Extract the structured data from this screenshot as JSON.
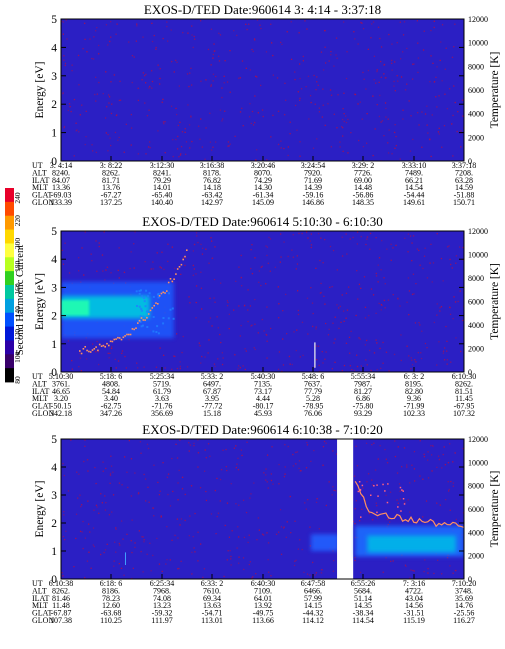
{
  "colorbar": {
    "label": "Second Harmonic Current",
    "ticks": [
      "240",
      "220",
      "200",
      "180",
      "160",
      "140",
      "120",
      "100",
      "80"
    ],
    "colors": [
      "#e8002a",
      "#ff4a00",
      "#ff9a00",
      "#ffd800",
      "#ffff40",
      "#b8ff20",
      "#30d020",
      "#00c8a0",
      "#00a0e0",
      "#0050ff",
      "#0018d8",
      "#2c00a8",
      "#38006a",
      "#000000"
    ]
  },
  "colors": {
    "background": "#2b1fc4",
    "noise_dot": "#b40f46",
    "trace": "#f0c8a0",
    "warm_line": "#ff9060",
    "gap": "#ffffff"
  },
  "chart_data": [
    {
      "type": "heatmap",
      "title": "EXOS-D/TED   Date:960614   3: 4:14 - 3:37:18",
      "ylabel": "Energy [eV]",
      "y2label": "Temperature [K]",
      "ylim": [
        0,
        5
      ],
      "y2lim": [
        0,
        12000
      ],
      "yticks": [
        "0",
        "1",
        "2",
        "3",
        "4",
        "5"
      ],
      "y2ticks": [
        "0",
        "2000",
        "4000",
        "6000",
        "8000",
        "10000",
        "12000"
      ],
      "table": {
        "row_labels": [
          "UT",
          "ALT",
          "ILAT",
          "MLT",
          "GLAT",
          "GLON"
        ],
        "columns": [
          [
            "3: 4:14",
            "8240.",
            "84.07",
            "13.36",
            "-69.03",
            "133.39"
          ],
          [
            "3: 8:22",
            "8262.",
            "81.71",
            "13.76",
            "-67.27",
            "137.25"
          ],
          [
            "3:12:30",
            "8241.",
            "79.29",
            "14.01",
            "-65.40",
            "140.40"
          ],
          [
            "3:16:38",
            "8178.",
            "76.82",
            "14.18",
            "-63.42",
            "142.97"
          ],
          [
            "3:20:46",
            "8070.",
            "74.29",
            "14.30",
            "-61.34",
            "145.09"
          ],
          [
            "3:24:54",
            "7920.",
            "71.69",
            "14.39",
            "-59.16",
            "146.86"
          ],
          [
            "3:29: 2",
            "7726.",
            "69.00",
            "14.48",
            "-56.86",
            "148.35"
          ],
          [
            "3:33:10",
            "7489.",
            "66.21",
            "14.54",
            "-54.44",
            "149.61"
          ],
          [
            "3:37:18",
            "7208.",
            "63.28",
            "14.59",
            "-51.88",
            "150.71"
          ]
        ]
      }
    },
    {
      "type": "heatmap",
      "title": "EXOS-D/TED   Date:960614   5:10:30 - 6:10:30",
      "ylabel": "Energy [eV]",
      "y2label": "Temperature [K]",
      "ylim": [
        0,
        5
      ],
      "y2lim": [
        0,
        12000
      ],
      "yticks": [
        "0",
        "1",
        "2",
        "3",
        "4",
        "5"
      ],
      "y2ticks": [
        "0",
        "2000",
        "4000",
        "6000",
        "8000",
        "10000",
        "12000"
      ],
      "table": {
        "row_labels": [
          "UT",
          "ALT",
          "ILAT",
          "MLT",
          "GLAT",
          "GLON"
        ],
        "columns": [
          [
            "5:10:30",
            "3761.",
            "46.65",
            "3.20",
            "-50.15",
            "342.18"
          ],
          [
            "5:18: 6",
            "4808.",
            "54.84",
            "3.40",
            "-62.75",
            "347.26"
          ],
          [
            "5:25:34",
            "5719.",
            "61.79",
            "3.63",
            "-71.76",
            "356.69"
          ],
          [
            "5:33: 2",
            "6497.",
            "67.87",
            "3.95",
            "-77.72",
            "15.18"
          ],
          [
            "5:40:30",
            "7135.",
            "73.17",
            "4.44",
            "-80.17",
            "45.93"
          ],
          [
            "5:48: 6",
            "7637.",
            "77.79",
            "5.28",
            "-78.95",
            "76.06"
          ],
          [
            "5:55:34",
            "7987.",
            "81.27",
            "6.86",
            "-75.80",
            "93.29"
          ],
          [
            "6: 3: 2",
            "8195.",
            "82.80",
            "9.36",
            "-71.99",
            "102.33"
          ],
          [
            "6:10:30",
            "8262.",
            "81.51",
            "11.45",
            "-67.95",
            "107.32"
          ]
        ]
      }
    },
    {
      "type": "heatmap",
      "title": "EXOS-D/TED   Date:960614   6:10:38 - 7:10:20",
      "ylabel": "Energy [eV]",
      "y2label": "Temperature [K]",
      "ylim": [
        0,
        5
      ],
      "y2lim": [
        0,
        12000
      ],
      "yticks": [
        "0",
        "1",
        "2",
        "3",
        "4",
        "5"
      ],
      "y2ticks": [
        "0",
        "2000",
        "4000",
        "6000",
        "8000",
        "10000",
        "12000"
      ],
      "table": {
        "row_labels": [
          "UT",
          "ALT",
          "ILAT",
          "MLT",
          "GLAT",
          "GLON"
        ],
        "columns": [
          [
            "6:10:38",
            "8262.",
            "81.46",
            "11.48",
            "-67.87",
            "107.38"
          ],
          [
            "6:18: 6",
            "8186.",
            "78.23",
            "12.60",
            "-63.68",
            "110.25"
          ],
          [
            "6:25:34",
            "7968.",
            "74.08",
            "13.23",
            "-59.32",
            "111.97"
          ],
          [
            "6:33: 2",
            "7610.",
            "69.34",
            "13.63",
            "-54.71",
            "113.01"
          ],
          [
            "6:40:30",
            "7109.",
            "64.01",
            "13.92",
            "-49.75",
            "113.66"
          ],
          [
            "6:47:58",
            "6466.",
            "57.99",
            "14.15",
            "-44.32",
            "114.12"
          ],
          [
            "6:55:26",
            "5684.",
            "51.14",
            "14.35",
            "-38.34",
            "114.54"
          ],
          [
            "7: 3:16",
            "4722.",
            "43.04",
            "14.56",
            "-31.51",
            "115.19"
          ],
          [
            "7:10:20",
            "3748.",
            "35.69",
            "14.76",
            "-25.56",
            "116.27"
          ]
        ]
      }
    }
  ]
}
